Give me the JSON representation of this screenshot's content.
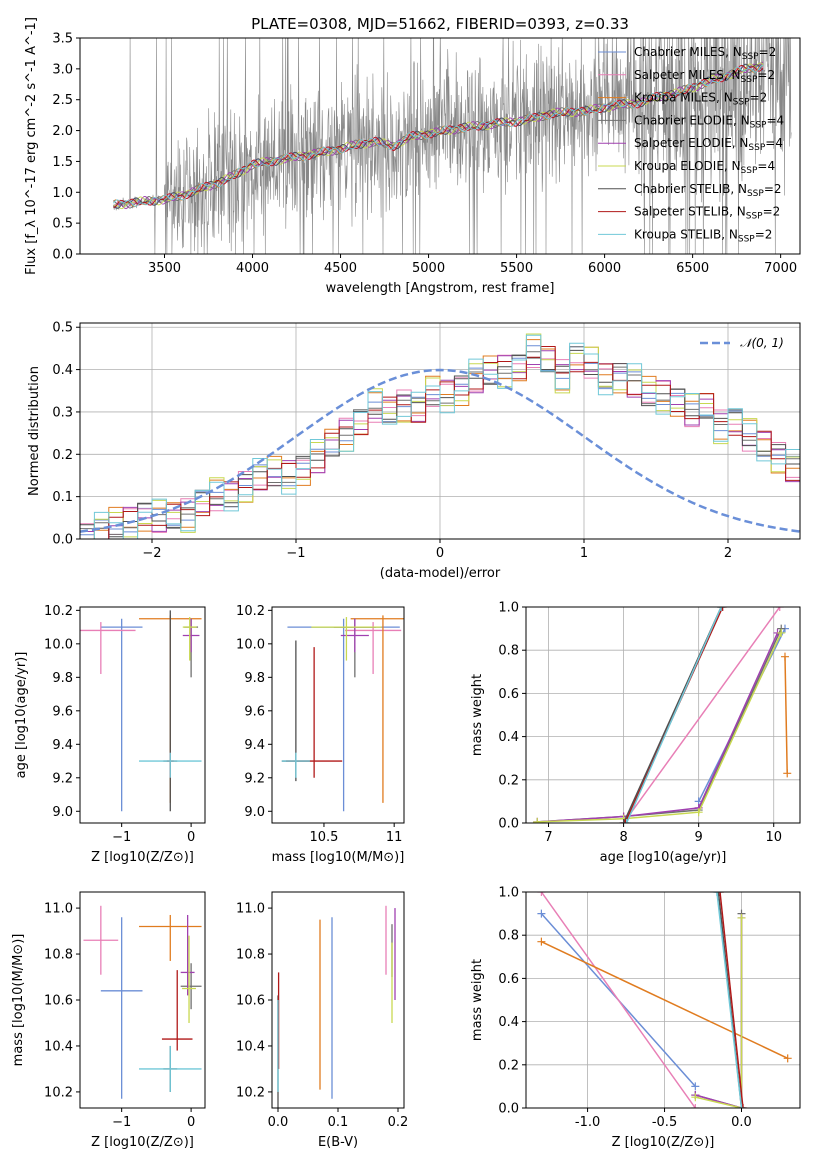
{
  "figure": {
    "title": "PLATE=0308, MJD=51662, FIBERID=0393, z=0.33"
  },
  "colors": {
    "Chabrier MILES": "#6b8ed6",
    "Salpeter MILES": "#e87fb6",
    "Kroupa MILES": "#e07c20",
    "Chabrier ELODIE": "#707070",
    "Salpeter ELODIE": "#a040b0",
    "Kroupa ELODIE": "#c8d850",
    "Chabrier STELIB": "#505050",
    "Salpeter STELIB": "#b01818",
    "Kroupa STELIB": "#70c8d8",
    "data": "#888888",
    "gauss": "#6a8fd8"
  },
  "chart_data": [
    {
      "id": "spectrum",
      "type": "line",
      "title": "PLATE=0308, MJD=51662, FIBERID=0393, z=0.33",
      "xlabel": "wavelength [Angstrom, rest frame]",
      "ylabel": "Flux [f_λ 10^-17 erg cm^-2 s^-1 A^-1]",
      "xlim": [
        3020,
        7110
      ],
      "ylim": [
        0,
        3.5
      ],
      "xticks": [
        3500,
        4000,
        4500,
        5000,
        5500,
        6000,
        6500,
        7000
      ],
      "yticks": [
        0.0,
        0.5,
        1.0,
        1.5,
        2.0,
        2.5,
        3.0,
        3.5
      ],
      "grid": false,
      "legend_position": "top-right",
      "legend": [
        "Chabrier MILES, N_SSP=2",
        "Salpeter MILES, N_SSP=2",
        "Kroupa MILES, N_SSP=2",
        "Chabrier ELODIE, N_SSP=4",
        "Salpeter ELODIE, N_SSP=4",
        "Kroupa ELODIE, N_SSP=4",
        "Chabrier STELIB, N_SSP=2",
        "Salpeter STELIB, N_SSP=2",
        "Kroupa STELIB, N_SSP=2"
      ],
      "model_continuum": {
        "x": [
          3210,
          3300,
          3400,
          3500,
          3600,
          3700,
          3800,
          3900,
          4000,
          4100,
          4200,
          4300,
          4400,
          4500,
          4600,
          4700,
          4800,
          4900,
          5000,
          5100,
          5200,
          5300,
          5400,
          5500,
          5600,
          5700,
          5800,
          5900,
          6000,
          6100,
          6200,
          6300,
          6400,
          6500,
          6600,
          6700,
          6800,
          6900
        ],
        "y": [
          0.8,
          0.82,
          0.86,
          0.88,
          0.95,
          1.05,
          1.15,
          1.28,
          1.45,
          1.5,
          1.55,
          1.6,
          1.65,
          1.7,
          1.78,
          1.82,
          1.75,
          1.9,
          1.95,
          2.0,
          2.05,
          2.08,
          2.12,
          2.15,
          2.2,
          2.28,
          2.3,
          2.32,
          2.38,
          2.42,
          2.45,
          2.55,
          2.6,
          2.7,
          2.8,
          2.9,
          3.0,
          3.05
        ]
      },
      "data_spectrum_range": [
        3210,
        7060
      ]
    },
    {
      "id": "residuals",
      "type": "step",
      "xlabel": "(data-model)/error",
      "ylabel": "Normed distribution",
      "xlim": [
        -2.5,
        2.5
      ],
      "ylim": [
        0,
        0.51
      ],
      "xticks": [
        -2,
        -1,
        0,
        1,
        2
      ],
      "yticks": [
        0.0,
        0.1,
        0.2,
        0.3,
        0.4,
        0.5
      ],
      "grid": true,
      "legend_position": "top-right",
      "legend": [
        "𝒩(0, 1)"
      ],
      "bin_width": 0.1,
      "bin_start": -2.5,
      "hist": [
        0.01,
        0.02,
        0.03,
        0.04,
        0.06,
        0.05,
        0.05,
        0.06,
        0.09,
        0.1,
        0.1,
        0.13,
        0.15,
        0.15,
        0.15,
        0.17,
        0.19,
        0.22,
        0.25,
        0.28,
        0.31,
        0.3,
        0.32,
        0.31,
        0.34,
        0.34,
        0.36,
        0.38,
        0.39,
        0.4,
        0.41,
        0.44,
        0.42,
        0.39,
        0.43,
        0.41,
        0.38,
        0.39,
        0.37,
        0.34,
        0.34,
        0.33,
        0.3,
        0.31,
        0.27,
        0.28,
        0.24,
        0.22,
        0.2,
        0.17,
        0.16,
        0.14,
        0.13,
        0.1,
        0.11,
        0.09,
        0.07,
        0.08,
        0.06,
        0.05,
        0.05,
        0.03,
        0.04,
        0.03,
        0.03,
        0.02,
        0.02,
        0.02,
        0.02,
        0.01
      ]
    },
    {
      "id": "age-vs-Z",
      "type": "errorbar",
      "xlabel": "Z [log10(Z/Z⊙)]",
      "ylabel": "age [log10(age/yr)]",
      "xlim": [
        -1.6,
        0.2
      ],
      "ylim": [
        8.93,
        10.22
      ],
      "xticks": [
        -1,
        0
      ],
      "yticks": [
        9.0,
        9.2,
        9.4,
        9.6,
        9.8,
        10.0,
        10.2
      ],
      "points": [
        {
          "model": "Chabrier MILES",
          "x": -1.0,
          "xerr": 0.3,
          "y": 10.1,
          "yerr": [
            1.1,
            0.05
          ]
        },
        {
          "model": "Salpeter MILES",
          "x": -1.3,
          "xerr": 0.5,
          "y": 10.08,
          "yerr": [
            0.26,
            0.05
          ]
        },
        {
          "model": "Kroupa MILES",
          "x": -0.3,
          "xerr": 0.45,
          "y": 10.15,
          "yerr": [
            1.1,
            0.02
          ]
        },
        {
          "model": "Chabrier ELODIE",
          "x": 0.0,
          "xerr": 0.1,
          "y": 10.1,
          "yerr": [
            0.3,
            0.05
          ]
        },
        {
          "model": "Salpeter ELODIE",
          "x": 0.0,
          "xerr": 0.12,
          "y": 10.05,
          "yerr": [
            0.1,
            0.1
          ]
        },
        {
          "model": "Kroupa ELODIE",
          "x": -0.02,
          "xerr": 0.1,
          "y": 10.1,
          "yerr": [
            0.2,
            0.06
          ]
        },
        {
          "model": "Chabrier STELIB",
          "x": -0.3,
          "xerr": 0.1,
          "y": 9.3,
          "yerr": [
            0.3,
            0.9
          ]
        },
        {
          "model": "Salpeter STELIB",
          "x": -0.3,
          "xerr": 0.05,
          "y": 9.3,
          "yerr": [
            0.1,
            0.05
          ]
        },
        {
          "model": "Kroupa STELIB",
          "x": -0.3,
          "xerr": 0.45,
          "y": 9.3,
          "yerr": [
            0.1,
            0.05
          ]
        }
      ]
    },
    {
      "id": "age-vs-mass",
      "type": "errorbar",
      "xlabel": "mass [log10(M/M⊙)]",
      "ylabel": "",
      "xlim": [
        10.13,
        11.07
      ],
      "ylim": [
        8.93,
        10.22
      ],
      "xticks": [
        10.5,
        11.0
      ],
      "yticks": [
        9.0,
        9.2,
        9.4,
        9.6,
        9.8,
        10.0,
        10.2
      ],
      "points": [
        {
          "model": "Chabrier MILES",
          "x": 10.64,
          "xerr": 0.4,
          "y": 10.1,
          "yerr": [
            1.1,
            0.05
          ]
        },
        {
          "model": "Salpeter MILES",
          "x": 10.85,
          "xerr": 0.2,
          "y": 10.08,
          "yerr": [
            0.26,
            0.05
          ]
        },
        {
          "model": "Kroupa MILES",
          "x": 10.92,
          "xerr": 0.23,
          "y": 10.15,
          "yerr": [
            1.1,
            0.02
          ]
        },
        {
          "model": "Chabrier ELODIE",
          "x": 10.72,
          "xerr": 0.15,
          "y": 10.1,
          "yerr": [
            0.3,
            0.05
          ]
        },
        {
          "model": "Salpeter ELODIE",
          "x": 10.72,
          "xerr": 0.1,
          "y": 10.05,
          "yerr": [
            0.1,
            0.1
          ]
        },
        {
          "model": "Kroupa ELODIE",
          "x": 10.66,
          "xerr": 0.25,
          "y": 10.1,
          "yerr": [
            0.2,
            0.06
          ]
        },
        {
          "model": "Chabrier STELIB",
          "x": 10.3,
          "xerr": 0.1,
          "y": 9.3,
          "yerr": [
            0.12,
            0.72
          ]
        },
        {
          "model": "Salpeter STELIB",
          "x": 10.43,
          "xerr": 0.2,
          "y": 9.3,
          "yerr": [
            0.1,
            0.68
          ]
        },
        {
          "model": "Kroupa STELIB",
          "x": 10.3,
          "xerr": 0.1,
          "y": 9.3,
          "yerr": [
            0.1,
            0.05
          ]
        }
      ]
    },
    {
      "id": "weight-vs-age",
      "type": "line",
      "xlabel": "age [log10(age/yr)]",
      "ylabel": "mass weight",
      "xlim": [
        6.7,
        10.35
      ],
      "ylim": [
        0,
        1.0
      ],
      "xticks": [
        7,
        8,
        9,
        10
      ],
      "yticks": [
        0.0,
        0.2,
        0.4,
        0.6,
        0.8,
        1.0
      ],
      "grid": true,
      "series": [
        {
          "model": "Chabrier MILES",
          "x": [
            9.0,
            10.15
          ],
          "y": [
            0.1,
            0.9
          ]
        },
        {
          "model": "Salpeter MILES",
          "x": [
            8.0,
            10.08
          ],
          "y": [
            0.0,
            1.0
          ]
        },
        {
          "model": "Kroupa MILES",
          "x": [
            10.15,
            10.18
          ],
          "y": [
            0.77,
            0.23
          ]
        },
        {
          "model": "Chabrier ELODIE",
          "x": [
            6.85,
            8.0,
            9.0,
            10.1
          ],
          "y": [
            0.005,
            0.03,
            0.06,
            0.9
          ]
        },
        {
          "model": "Salpeter ELODIE",
          "x": [
            6.85,
            8.0,
            9.0,
            10.05
          ],
          "y": [
            0.005,
            0.03,
            0.07,
            0.88
          ]
        },
        {
          "model": "Kroupa ELODIE",
          "x": [
            6.85,
            8.0,
            9.0,
            10.1
          ],
          "y": [
            0.005,
            0.02,
            0.05,
            0.88
          ]
        },
        {
          "model": "Chabrier STELIB",
          "x": [
            8.0,
            9.3
          ],
          "y": [
            0.0,
            1.0
          ]
        },
        {
          "model": "Salpeter STELIB",
          "x": [
            8.02,
            9.32
          ],
          "y": [
            0.0,
            1.0
          ]
        },
        {
          "model": "Kroupa STELIB",
          "x": [
            8.04,
            9.3
          ],
          "y": [
            0.0,
            1.0
          ]
        }
      ]
    },
    {
      "id": "mass-vs-Z",
      "type": "errorbar",
      "xlabel": "Z [log10(Z/Z⊙)]",
      "ylabel": "mass [log10(M/M⊙)]",
      "xlim": [
        -1.6,
        0.2
      ],
      "ylim": [
        10.13,
        11.07
      ],
      "xticks": [
        -1,
        0
      ],
      "yticks": [
        10.2,
        10.4,
        10.6,
        10.8,
        11.0
      ],
      "points": [
        {
          "model": "Chabrier MILES",
          "x": -1.0,
          "xerr": 0.3,
          "y": 10.64,
          "yerr": [
            0.47,
            0.32
          ]
        },
        {
          "model": "Salpeter MILES",
          "x": -1.3,
          "xerr": 0.25,
          "y": 10.86,
          "yerr": [
            0.15,
            0.15
          ]
        },
        {
          "model": "Kroupa MILES",
          "x": -0.3,
          "xerr": 0.45,
          "y": 10.92,
          "yerr": [
            0.15,
            0.05
          ]
        },
        {
          "model": "Chabrier ELODIE",
          "x": 0.0,
          "xerr": 0.15,
          "y": 10.66,
          "yerr": [
            0.1,
            0.1
          ]
        },
        {
          "model": "Salpeter ELODIE",
          "x": -0.05,
          "xerr": 0.1,
          "y": 10.72,
          "yerr": [
            0.1,
            0.25
          ]
        },
        {
          "model": "Kroupa ELODIE",
          "x": -0.03,
          "xerr": 0.1,
          "y": 10.65,
          "yerr": [
            0.15,
            0.23
          ]
        },
        {
          "model": "Chabrier STELIB",
          "x": -0.3,
          "xerr": 0.1,
          "y": 10.3,
          "yerr": [
            0.1,
            0.1
          ]
        },
        {
          "model": "Salpeter STELIB",
          "x": -0.2,
          "xerr": 0.22,
          "y": 10.43,
          "yerr": [
            0.05,
            0.3
          ]
        },
        {
          "model": "Kroupa STELIB",
          "x": -0.3,
          "xerr": 0.45,
          "y": 10.3,
          "yerr": [
            0.1,
            0.1
          ]
        }
      ]
    },
    {
      "id": "mass-vs-EBV",
      "type": "errorbar",
      "xlabel": "E(B-V)",
      "ylabel": "",
      "xlim": [
        -0.01,
        0.21
      ],
      "ylim": [
        10.13,
        11.07
      ],
      "xticks": [
        0.0,
        0.1,
        0.2
      ],
      "yticks": [
        10.2,
        10.4,
        10.6,
        10.8,
        11.0
      ],
      "points": [
        {
          "model": "Chabrier MILES",
          "x": 0.09,
          "y": 10.64,
          "yerr": [
            0.47,
            0.32
          ]
        },
        {
          "model": "Salpeter MILES",
          "x": 0.18,
          "y": 10.86,
          "yerr": [
            0.15,
            0.15
          ]
        },
        {
          "model": "Kroupa MILES",
          "x": 0.07,
          "y": 10.58,
          "yerr": [
            0.37,
            0.37
          ]
        },
        {
          "model": "Chabrier ELODIE",
          "x": 0.19,
          "y": 10.8,
          "yerr": [
            0.1,
            0.13
          ]
        },
        {
          "model": "Salpeter ELODIE",
          "x": 0.195,
          "y": 10.8,
          "yerr": [
            0.2,
            0.2
          ]
        },
        {
          "model": "Kroupa ELODIE",
          "x": 0.19,
          "y": 10.7,
          "yerr": [
            0.2,
            0.15
          ]
        },
        {
          "model": "Chabrier STELIB",
          "x": 0.0,
          "y": 10.42,
          "yerr": [
            0.3,
            0.2
          ]
        },
        {
          "model": "Salpeter STELIB",
          "x": 0.001,
          "y": 10.5,
          "yerr": [
            0.2,
            0.22
          ]
        },
        {
          "model": "Kroupa STELIB",
          "x": 0.0,
          "y": 10.4,
          "yerr": [
            0.2,
            0.2
          ]
        }
      ]
    },
    {
      "id": "weight-vs-Z",
      "type": "line",
      "xlabel": "Z [log10(Z/Z⊙)]",
      "ylabel": "mass weight",
      "xlim": [
        -1.4,
        0.38
      ],
      "ylim": [
        0,
        1.0
      ],
      "xticks": [
        -1.0,
        -0.5,
        0.0
      ],
      "yticks": [
        0.0,
        0.2,
        0.4,
        0.6,
        0.8,
        1.0
      ],
      "grid": true,
      "series": [
        {
          "model": "Chabrier MILES",
          "x": [
            -1.3,
            -0.3
          ],
          "y": [
            0.9,
            0.1
          ]
        },
        {
          "model": "Salpeter MILES",
          "x": [
            -1.3,
            -0.3
          ],
          "y": [
            1.0,
            0.0
          ]
        },
        {
          "model": "Kroupa MILES",
          "x": [
            -1.3,
            0.3
          ],
          "y": [
            0.77,
            0.23
          ]
        },
        {
          "model": "Chabrier ELODIE",
          "x": [
            -0.3,
            0.0,
            0.0
          ],
          "y": [
            0.06,
            0.0,
            0.9
          ]
        },
        {
          "model": "Salpeter ELODIE",
          "x": [
            -0.3,
            0.0,
            0.0
          ],
          "y": [
            0.06,
            0.0,
            0.88
          ]
        },
        {
          "model": "Kroupa ELODIE",
          "x": [
            -0.3,
            0.0,
            0.0
          ],
          "y": [
            0.05,
            0.0,
            0.88
          ]
        },
        {
          "model": "Chabrier STELIB",
          "x": [
            -0.15,
            0.0
          ],
          "y": [
            1.0,
            0.0
          ]
        },
        {
          "model": "Salpeter STELIB",
          "x": [
            -0.14,
            0.01
          ],
          "y": [
            1.0,
            0.0
          ]
        },
        {
          "model": "Kroupa STELIB",
          "x": [
            -0.16,
            0.0
          ],
          "y": [
            1.0,
            0.0
          ]
        }
      ]
    }
  ]
}
